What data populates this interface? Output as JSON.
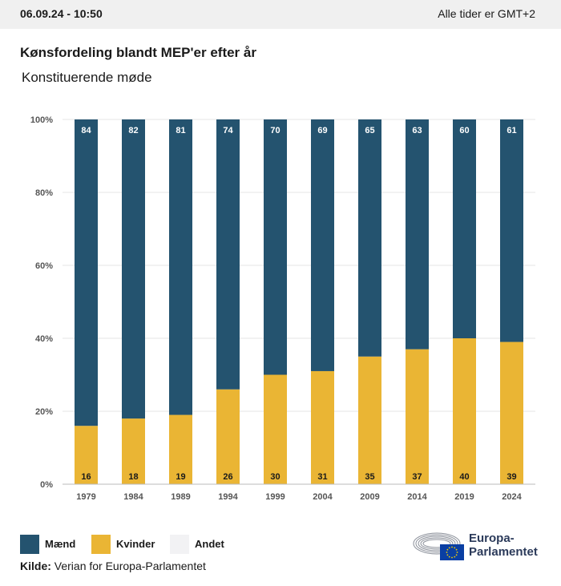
{
  "header": {
    "timestamp": "06.09.24 - 10:50",
    "timezone": "Alle tider er GMT+2"
  },
  "title": "Kønsfordeling blandt MEP'er efter år",
  "subtitle": "Konstituerende møde",
  "colors": {
    "men": "#24536f",
    "women": "#eab534",
    "other": "#f2f2f4"
  },
  "legend": [
    {
      "label": "Mænd",
      "color": "#24536f"
    },
    {
      "label": "Kvinder",
      "color": "#eab534"
    },
    {
      "label": "Andet",
      "color": "#f2f2f4"
    }
  ],
  "source": {
    "label": "Kilde:",
    "text": "Verian for Europa-Parlamentet"
  },
  "logo": {
    "line1": "Europa-",
    "line2": "Parlamentet",
    "icon": "european-parliament-logo-icon"
  },
  "chart_data": {
    "type": "bar",
    "stacked": true,
    "categories": [
      "1979",
      "1984",
      "1989",
      "1994",
      "1999",
      "2004",
      "2009",
      "2014",
      "2019",
      "2024"
    ],
    "series": [
      {
        "name": "Kvinder",
        "values": [
          16,
          18,
          19,
          26,
          30,
          31,
          35,
          37,
          40,
          39
        ]
      },
      {
        "name": "Mænd",
        "values": [
          84,
          82,
          81,
          74,
          70,
          69,
          65,
          63,
          60,
          61
        ]
      }
    ],
    "yticks": [
      "0%",
      "20%",
      "40%",
      "60%",
      "80%",
      "100%"
    ],
    "ylim": [
      0,
      100
    ],
    "grid": true,
    "legend_position": "bottom-left"
  }
}
